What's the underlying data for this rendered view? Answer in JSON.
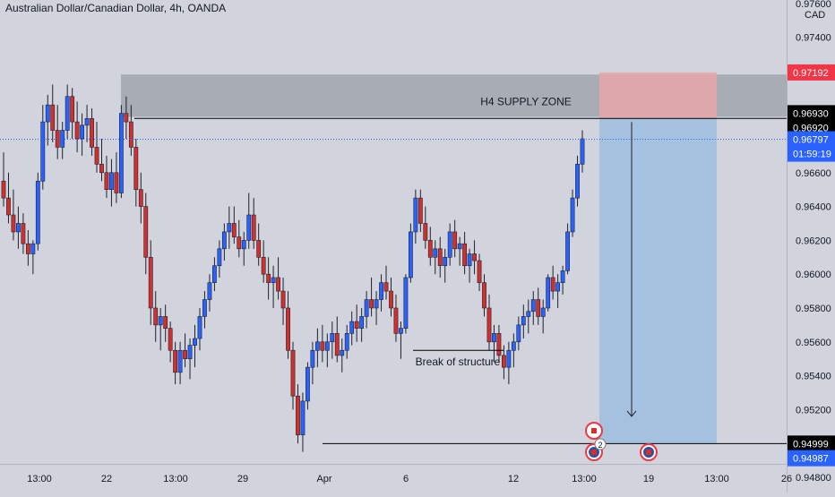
{
  "header": {
    "title": "Australian Dollar/Canadian Dollar, 4h, OANDA",
    "currency": "CAD"
  },
  "annotations": {
    "supply_zone": "H4 SUPPLY ZONE",
    "break_of_structure": "Break of structure"
  },
  "price_labels": {
    "stop": "0.97192",
    "zone_top": "0.96930",
    "zone_bottom": "0.96920",
    "current": "0.96797",
    "countdown": "01:59:19",
    "target": "0.94999",
    "low": "0.94987"
  },
  "events": {
    "badge_count": "2"
  },
  "colors": {
    "background": "#d1d4dc",
    "bull": "#2962ff",
    "bear": "#d32f2f",
    "zone": "#9aa0a8",
    "stop_box": "#e8a6a9",
    "target_box": "#9ebde0",
    "current_label": "#2962ff",
    "stop_label": "#f23645",
    "line_label": "#000000"
  },
  "chart_data": {
    "type": "candlestick",
    "title": "Australian Dollar/Canadian Dollar, 4h, OANDA",
    "ylim": [
      0.9471,
      0.9762
    ],
    "y_ticks": [
      "0.97600",
      "0.97400",
      "0.96600",
      "0.96400",
      "0.96200",
      "0.96000",
      "0.95800",
      "0.95600",
      "0.95400",
      "0.95200",
      "0.94800"
    ],
    "x_ticks": [
      "13:00",
      "22",
      "13:00",
      "29",
      "Apr",
      "6",
      "12",
      "13:00",
      "19",
      "13:00",
      "26"
    ],
    "ohlc": [
      [
        0.9655,
        0.9672,
        0.964,
        0.9645
      ],
      [
        0.9645,
        0.966,
        0.963,
        0.9635
      ],
      [
        0.9635,
        0.965,
        0.962,
        0.9625
      ],
      [
        0.9625,
        0.964,
        0.9615,
        0.963
      ],
      [
        0.963,
        0.9636,
        0.9612,
        0.9618
      ],
      [
        0.9618,
        0.9626,
        0.9605,
        0.9612
      ],
      [
        0.9612,
        0.962,
        0.96,
        0.9618
      ],
      [
        0.9618,
        0.966,
        0.9614,
        0.9655
      ],
      [
        0.9655,
        0.97,
        0.965,
        0.969
      ],
      [
        0.969,
        0.9706,
        0.9676,
        0.97
      ],
      [
        0.97,
        0.9712,
        0.9678,
        0.9685
      ],
      [
        0.9685,
        0.97,
        0.9668,
        0.9675
      ],
      [
        0.9675,
        0.969,
        0.9668,
        0.9685
      ],
      [
        0.9685,
        0.9712,
        0.968,
        0.9705
      ],
      [
        0.9705,
        0.971,
        0.968,
        0.969
      ],
      [
        0.969,
        0.9702,
        0.9672,
        0.968
      ],
      [
        0.968,
        0.9695,
        0.967,
        0.9688
      ],
      [
        0.9688,
        0.97,
        0.9678,
        0.9692
      ],
      [
        0.9692,
        0.9698,
        0.967,
        0.9675
      ],
      [
        0.9675,
        0.969,
        0.966,
        0.9665
      ],
      [
        0.9665,
        0.968,
        0.9655,
        0.966
      ],
      [
        0.966,
        0.967,
        0.9645,
        0.965
      ],
      [
        0.965,
        0.9668,
        0.964,
        0.966
      ],
      [
        0.966,
        0.9672,
        0.9642,
        0.9648
      ],
      [
        0.9648,
        0.97,
        0.9645,
        0.9695
      ],
      [
        0.9695,
        0.9705,
        0.968,
        0.969
      ],
      [
        0.969,
        0.97,
        0.967,
        0.9675
      ],
      [
        0.9675,
        0.968,
        0.964,
        0.965
      ],
      [
        0.965,
        0.966,
        0.963,
        0.964
      ],
      [
        0.964,
        0.9648,
        0.96,
        0.961
      ],
      [
        0.961,
        0.962,
        0.957,
        0.958
      ],
      [
        0.958,
        0.959,
        0.956,
        0.957
      ],
      [
        0.957,
        0.958,
        0.9555,
        0.9575
      ],
      [
        0.9575,
        0.9582,
        0.956,
        0.9568
      ],
      [
        0.9568,
        0.9572,
        0.9548,
        0.9555
      ],
      [
        0.9555,
        0.956,
        0.9535,
        0.9542
      ],
      [
        0.9542,
        0.956,
        0.9535,
        0.9555
      ],
      [
        0.9555,
        0.9565,
        0.9545,
        0.955
      ],
      [
        0.955,
        0.9562,
        0.9538,
        0.9558
      ],
      [
        0.9558,
        0.957,
        0.9545,
        0.9562
      ],
      [
        0.9562,
        0.958,
        0.9555,
        0.9575
      ],
      [
        0.9575,
        0.959,
        0.9568,
        0.9585
      ],
      [
        0.9585,
        0.96,
        0.9578,
        0.9595
      ],
      [
        0.9595,
        0.961,
        0.959,
        0.9605
      ],
      [
        0.9605,
        0.962,
        0.9598,
        0.9615
      ],
      [
        0.9615,
        0.963,
        0.9608,
        0.9625
      ],
      [
        0.9625,
        0.964,
        0.9615,
        0.963
      ],
      [
        0.963,
        0.964,
        0.9618,
        0.9622
      ],
      [
        0.9622,
        0.9632,
        0.961,
        0.9615
      ],
      [
        0.9615,
        0.9625,
        0.9605,
        0.962
      ],
      [
        0.962,
        0.9648,
        0.9615,
        0.9635
      ],
      [
        0.9635,
        0.9645,
        0.9615,
        0.962
      ],
      [
        0.962,
        0.963,
        0.9605,
        0.961
      ],
      [
        0.961,
        0.962,
        0.9595,
        0.96
      ],
      [
        0.96,
        0.961,
        0.9585,
        0.9595
      ],
      [
        0.9595,
        0.9605,
        0.958,
        0.9598
      ],
      [
        0.9598,
        0.961,
        0.9585,
        0.959
      ],
      [
        0.959,
        0.9598,
        0.957,
        0.958
      ],
      [
        0.958,
        0.959,
        0.955,
        0.9555
      ],
      [
        0.9555,
        0.956,
        0.952,
        0.9528
      ],
      [
        0.9528,
        0.9535,
        0.95,
        0.9505
      ],
      [
        0.9505,
        0.953,
        0.9495,
        0.9525
      ],
      [
        0.9525,
        0.9548,
        0.952,
        0.9545
      ],
      [
        0.9545,
        0.956,
        0.9535,
        0.9555
      ],
      [
        0.9555,
        0.9568,
        0.9545,
        0.956
      ],
      [
        0.956,
        0.957,
        0.9548,
        0.9555
      ],
      [
        0.9555,
        0.9565,
        0.9545,
        0.956
      ],
      [
        0.956,
        0.9572,
        0.955,
        0.9565
      ],
      [
        0.9565,
        0.9575,
        0.9548,
        0.9552
      ],
      [
        0.9552,
        0.9562,
        0.9542,
        0.9555
      ],
      [
        0.9555,
        0.957,
        0.955,
        0.9565
      ],
      [
        0.9565,
        0.9578,
        0.9558,
        0.9572
      ],
      [
        0.9572,
        0.9582,
        0.956,
        0.9568
      ],
      [
        0.9568,
        0.958,
        0.956,
        0.9575
      ],
      [
        0.9575,
        0.959,
        0.9568,
        0.9585
      ],
      [
        0.9585,
        0.9598,
        0.9575,
        0.958
      ],
      [
        0.958,
        0.959,
        0.957,
        0.9585
      ],
      [
        0.9585,
        0.96,
        0.9578,
        0.9595
      ],
      [
        0.9595,
        0.9605,
        0.9585,
        0.959
      ],
      [
        0.959,
        0.9598,
        0.9575,
        0.958
      ],
      [
        0.958,
        0.9588,
        0.956,
        0.9565
      ],
      [
        0.9565,
        0.9572,
        0.955,
        0.9568
      ],
      [
        0.9568,
        0.96,
        0.9565,
        0.9598
      ],
      [
        0.9598,
        0.963,
        0.9595,
        0.9625
      ],
      [
        0.9625,
        0.965,
        0.9618,
        0.9645
      ],
      [
        0.9645,
        0.965,
        0.9625,
        0.963
      ],
      [
        0.963,
        0.964,
        0.9615,
        0.962
      ],
      [
        0.962,
        0.9628,
        0.9605,
        0.961
      ],
      [
        0.961,
        0.962,
        0.96,
        0.9615
      ],
      [
        0.9615,
        0.9622,
        0.9598,
        0.9605
      ],
      [
        0.9605,
        0.9615,
        0.9595,
        0.961
      ],
      [
        0.961,
        0.963,
        0.9605,
        0.9625
      ],
      [
        0.9625,
        0.9632,
        0.961,
        0.9615
      ],
      [
        0.9615,
        0.9622,
        0.9605,
        0.9618
      ],
      [
        0.9618,
        0.9625,
        0.96,
        0.9605
      ],
      [
        0.9605,
        0.9615,
        0.9595,
        0.9612
      ],
      [
        0.9612,
        0.962,
        0.96,
        0.9608
      ],
      [
        0.9608,
        0.9612,
        0.959,
        0.9595
      ],
      [
        0.9595,
        0.96,
        0.9575,
        0.958
      ],
      [
        0.958,
        0.9588,
        0.9555,
        0.956
      ],
      [
        0.956,
        0.957,
        0.9548,
        0.9565
      ],
      [
        0.9565,
        0.957,
        0.9548,
        0.9552
      ],
      [
        0.9552,
        0.9558,
        0.9538,
        0.9545
      ],
      [
        0.9545,
        0.956,
        0.9535,
        0.9555
      ],
      [
        0.9555,
        0.9565,
        0.9545,
        0.956
      ],
      [
        0.956,
        0.9575,
        0.9555,
        0.957
      ],
      [
        0.957,
        0.9582,
        0.9562,
        0.9575
      ],
      [
        0.9575,
        0.9585,
        0.9565,
        0.9578
      ],
      [
        0.9578,
        0.959,
        0.957,
        0.9585
      ],
      [
        0.9585,
        0.9592,
        0.957,
        0.9575
      ],
      [
        0.9575,
        0.9585,
        0.9565,
        0.958
      ],
      [
        0.958,
        0.96,
        0.9578,
        0.9598
      ],
      [
        0.9598,
        0.9605,
        0.9585,
        0.959
      ],
      [
        0.959,
        0.96,
        0.958,
        0.9595
      ],
      [
        0.9595,
        0.9605,
        0.9588,
        0.9602
      ],
      [
        0.9602,
        0.963,
        0.96,
        0.9625
      ],
      [
        0.9625,
        0.965,
        0.9622,
        0.9645
      ],
      [
        0.9645,
        0.967,
        0.964,
        0.9665
      ],
      [
        0.9665,
        0.9685,
        0.966,
        0.968
      ]
    ]
  }
}
